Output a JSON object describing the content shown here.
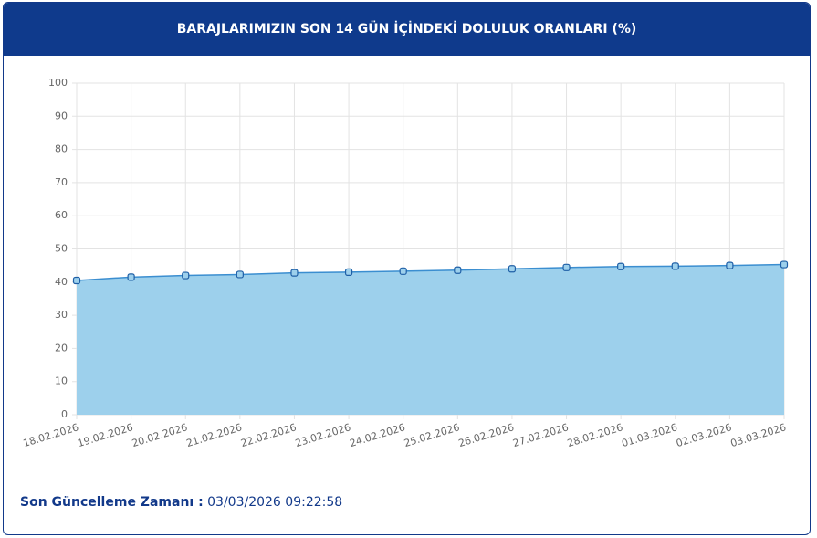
{
  "header": {
    "title": "BARAJLARIMIZIN SON 14 GÜN İÇİNDEKİ DOLULUK ORANLARI (%)"
  },
  "chart_data": {
    "type": "area",
    "categories": [
      "18.02.2026",
      "19.02.2026",
      "20.02.2026",
      "21.02.2026",
      "22.02.2026",
      "23.02.2026",
      "24.02.2026",
      "25.02.2026",
      "26.02.2026",
      "27.02.2026",
      "28.02.2026",
      "01.03.2026",
      "02.03.2026",
      "03.03.2026"
    ],
    "values": [
      40.5,
      41.5,
      42,
      42.3,
      42.8,
      43,
      43.3,
      43.6,
      44,
      44.4,
      44.7,
      44.8,
      45,
      45.3
    ],
    "color": "#3b8ed0",
    "fill": "#9dd0ec",
    "ylim": [
      0,
      100
    ],
    "yticks": [
      0,
      10,
      20,
      30,
      40,
      50,
      60,
      70,
      80,
      90,
      100
    ],
    "grid": true
  },
  "footer": {
    "label": "Son Güncelleme Zamanı :",
    "value": "03/03/2026 09:22:58"
  }
}
